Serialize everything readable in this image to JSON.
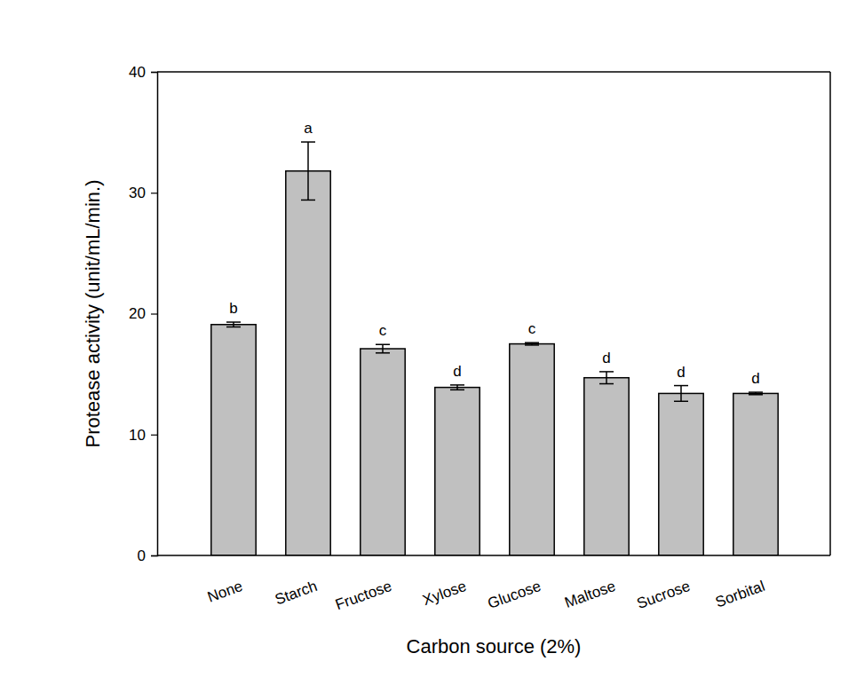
{
  "chart_data": {
    "type": "bar",
    "x_label": "Carbon source (2%)",
    "y_label": "Protease activity (unit/mL/min.)",
    "categories": [
      "None",
      "Starch",
      "Fructose",
      "Xylose",
      "Glucose",
      "Maltose",
      "Sucrose",
      "Sorbital"
    ],
    "values": [
      19.1,
      31.8,
      17.1,
      13.9,
      17.5,
      14.7,
      13.4,
      13.4
    ],
    "errors": [
      0.2,
      2.4,
      0.35,
      0.2,
      0.1,
      0.5,
      0.65,
      0.1
    ],
    "annotations": [
      "b",
      "a",
      "c",
      "d",
      "c",
      "d",
      "d",
      "d"
    ],
    "color": "#c0c0c0",
    "ylim": [
      0,
      40
    ],
    "yticks": [
      0,
      10,
      20,
      30,
      40
    ],
    "grid": false
  }
}
